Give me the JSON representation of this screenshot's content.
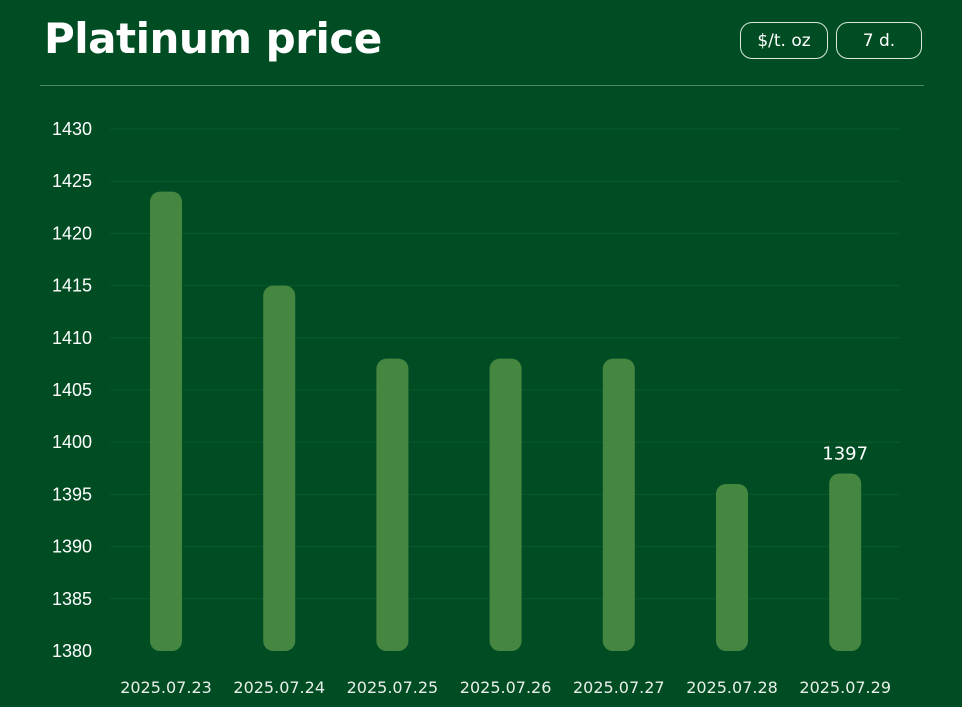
{
  "header": {
    "title": "Platinum price",
    "unit_button": "$/t. oz",
    "period_button": "7 d."
  },
  "colors": {
    "background": "#004d24",
    "bar": "#458640",
    "grid": "#0a5a2c"
  },
  "chart_data": {
    "type": "bar",
    "title": "Platinum price",
    "xlabel": "",
    "ylabel": "",
    "categories": [
      "2025.07.23",
      "2025.07.24",
      "2025.07.25",
      "2025.07.26",
      "2025.07.27",
      "2025.07.28",
      "2025.07.29"
    ],
    "values": [
      1424,
      1415,
      1408,
      1408,
      1408,
      1396,
      1397
    ],
    "ylim": [
      1380,
      1430
    ],
    "yticks": [
      1380,
      1385,
      1390,
      1395,
      1400,
      1405,
      1410,
      1415,
      1420,
      1425,
      1430
    ],
    "data_labels": [
      {
        "index": 6,
        "text": "1397"
      }
    ],
    "grid": true,
    "legend": "none"
  }
}
